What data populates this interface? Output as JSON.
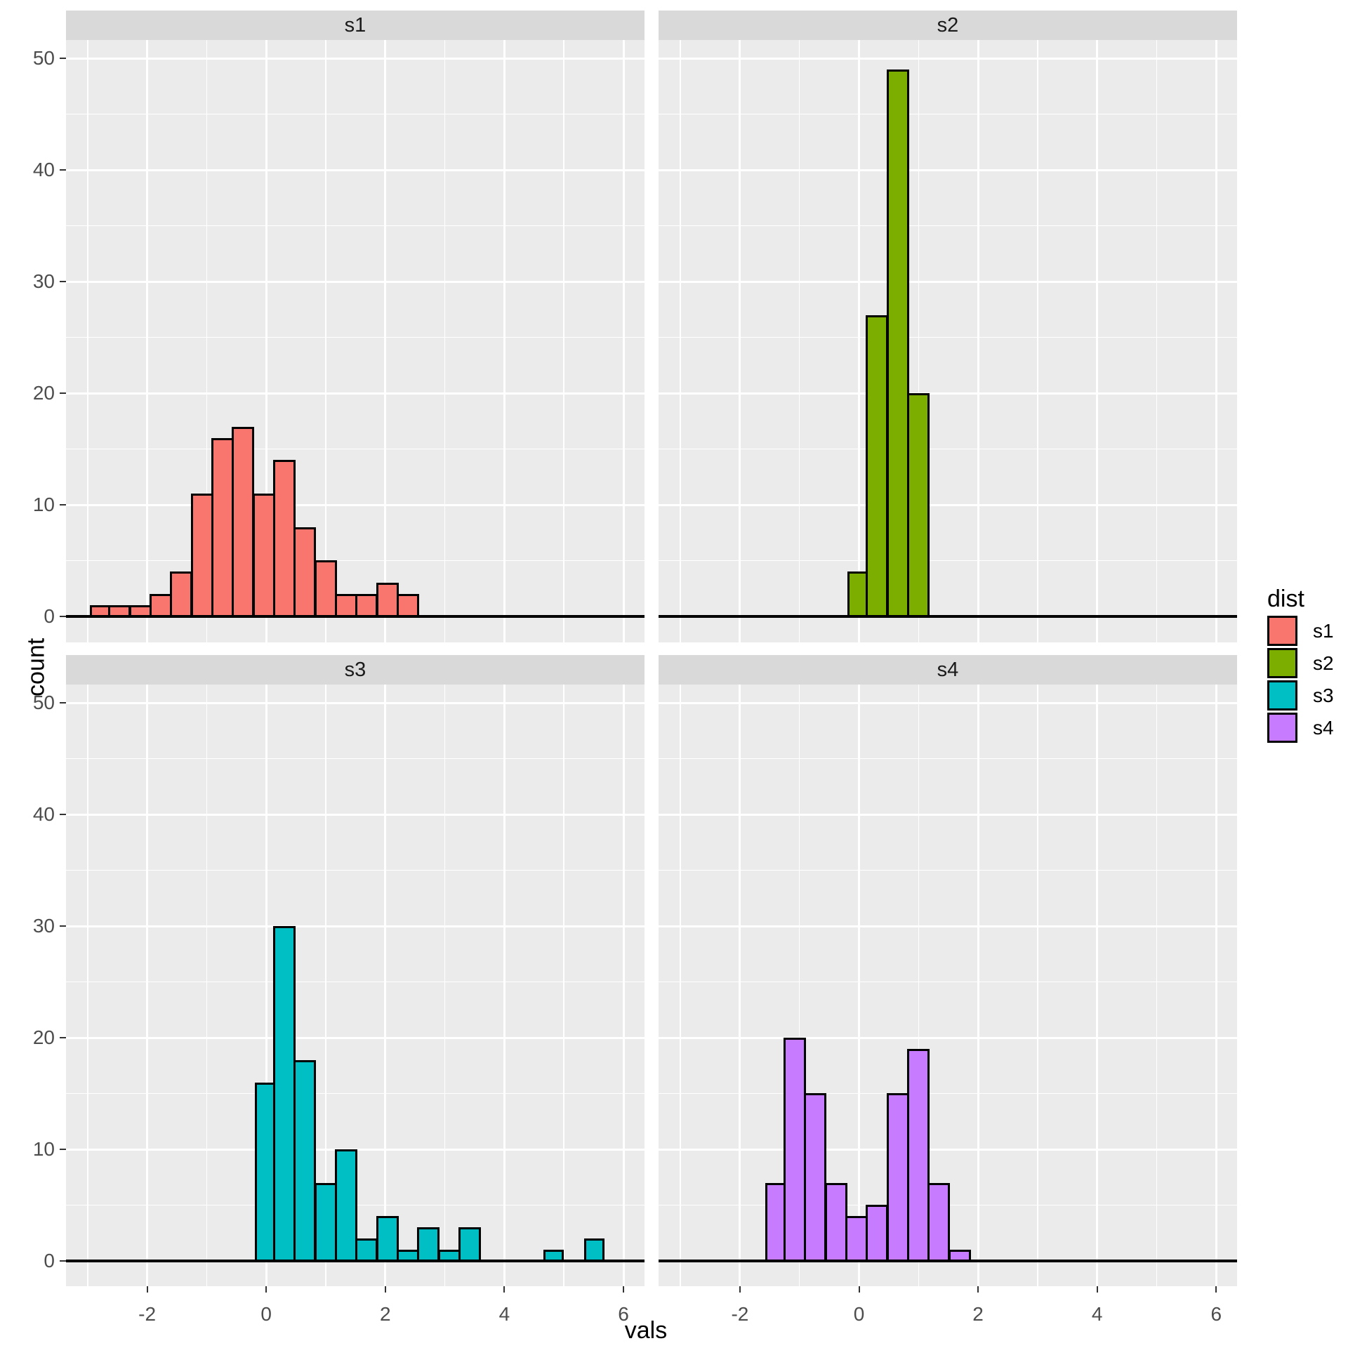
{
  "figure_title": "",
  "legend": {
    "title": "dist",
    "entries": [
      {
        "label": "s1",
        "color": "#F8766D"
      },
      {
        "label": "s2",
        "color": "#7CAE00"
      },
      {
        "label": "s3",
        "color": "#00BFC4"
      },
      {
        "label": "s4",
        "color": "#C77CFF"
      }
    ]
  },
  "colors": {
    "panel_background": "#EBEBEB",
    "strip_background": "#D9D9D9",
    "gridline": "#FFFFFF",
    "axis_text": "#4D4D4D",
    "bar_outline": "#000000",
    "baseline": "#000000"
  },
  "chart_data": {
    "type": "bar",
    "subtype": "faceted-histogram",
    "xlabel": "vals",
    "ylabel": "count",
    "x_ticks": [
      -2,
      0,
      2,
      4,
      6
    ],
    "y_ticks": [
      0,
      10,
      20,
      30,
      40,
      50
    ],
    "x_minor_gridlines": [
      -3,
      -1,
      1,
      3,
      5
    ],
    "y_minor_gridlines": [
      5,
      15,
      25,
      35,
      45
    ],
    "x_range": [
      -3.37,
      6.37
    ],
    "y_range": [
      -2.3,
      51.5
    ],
    "grid": "on",
    "legend_position": "right",
    "bin_origin": -2.962,
    "bin_width": 0.346,
    "facets": [
      {
        "name": "s1",
        "color": "#F8766D",
        "bars": [
          {
            "bin": 0,
            "count": 1
          },
          {
            "bin": 1,
            "count": 1
          },
          {
            "bin": 2,
            "count": 1
          },
          {
            "bin": 3,
            "count": 2
          },
          {
            "bin": 4,
            "count": 4
          },
          {
            "bin": 5,
            "count": 11
          },
          {
            "bin": 6,
            "count": 16
          },
          {
            "bin": 7,
            "count": 17
          },
          {
            "bin": 8,
            "count": 11
          },
          {
            "bin": 9,
            "count": 14
          },
          {
            "bin": 10,
            "count": 8
          },
          {
            "bin": 11,
            "count": 5
          },
          {
            "bin": 12,
            "count": 2
          },
          {
            "bin": 13,
            "count": 2
          },
          {
            "bin": 14,
            "count": 3
          },
          {
            "bin": 15,
            "count": 2
          }
        ]
      },
      {
        "name": "s2",
        "color": "#7CAE00",
        "bars": [
          {
            "bin": 8,
            "count": 4
          },
          {
            "bin": 9,
            "count": 27
          },
          {
            "bin": 10,
            "count": 49
          },
          {
            "bin": 11,
            "count": 20
          }
        ]
      },
      {
        "name": "s3",
        "color": "#00BFC4",
        "bars": [
          {
            "bin": 8,
            "count": 16
          },
          {
            "bin": 9,
            "count": 30
          },
          {
            "bin": 10,
            "count": 18
          },
          {
            "bin": 11,
            "count": 7
          },
          {
            "bin": 12,
            "count": 10
          },
          {
            "bin": 13,
            "count": 2
          },
          {
            "bin": 14,
            "count": 4
          },
          {
            "bin": 15,
            "count": 1
          },
          {
            "bin": 16,
            "count": 3
          },
          {
            "bin": 17,
            "count": 1
          },
          {
            "bin": 18,
            "count": 3
          },
          {
            "bin": 22,
            "count": 1
          },
          {
            "bin": 24,
            "count": 2
          }
        ]
      },
      {
        "name": "s4",
        "color": "#C77CFF",
        "bars": [
          {
            "bin": 4,
            "count": 7
          },
          {
            "bin": 5,
            "count": 20
          },
          {
            "bin": 6,
            "count": 15
          },
          {
            "bin": 7,
            "count": 7
          },
          {
            "bin": 8,
            "count": 4
          },
          {
            "bin": 9,
            "count": 5
          },
          {
            "bin": 10,
            "count": 15
          },
          {
            "bin": 11,
            "count": 19
          },
          {
            "bin": 12,
            "count": 7
          },
          {
            "bin": 13,
            "count": 1
          }
        ]
      }
    ]
  }
}
